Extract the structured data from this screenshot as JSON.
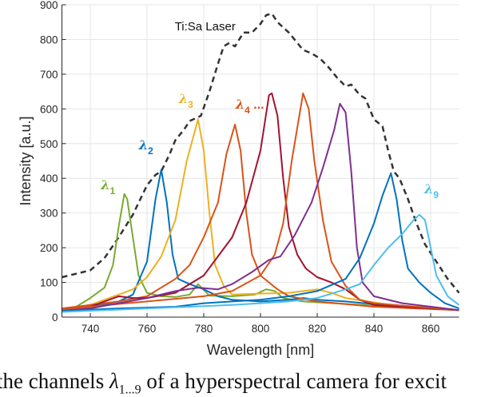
{
  "chart_data": {
    "type": "line",
    "xlabel": "Wavelength [nm]",
    "ylabel": "Intensity [a.u.]",
    "xlim": [
      730,
      870
    ],
    "ylim": [
      0,
      900
    ],
    "xticks": [
      740,
      760,
      780,
      800,
      820,
      840,
      860
    ],
    "yticks": [
      0,
      100,
      200,
      300,
      400,
      500,
      600,
      700,
      800,
      900
    ],
    "grid": true,
    "series": [
      {
        "name": "Ti:Sa Laser",
        "color": "#333333",
        "dashed": true,
        "label_at": [
          780.5,
          840
        ],
        "points": [
          [
            730,
            115
          ],
          [
            740,
            135
          ],
          [
            745,
            170
          ],
          [
            750,
            230
          ],
          [
            755,
            295
          ],
          [
            760,
            380
          ],
          [
            763,
            410
          ],
          [
            765,
            420
          ],
          [
            768,
            470
          ],
          [
            770,
            510
          ],
          [
            773,
            540
          ],
          [
            775,
            565
          ],
          [
            779,
            580
          ],
          [
            782,
            650
          ],
          [
            785,
            730
          ],
          [
            787,
            780
          ],
          [
            789,
            790
          ],
          [
            791,
            780
          ],
          [
            794,
            820
          ],
          [
            797,
            820
          ],
          [
            800,
            845
          ],
          [
            802,
            870
          ],
          [
            804,
            875
          ],
          [
            806,
            850
          ],
          [
            810,
            820
          ],
          [
            812,
            800
          ],
          [
            815,
            770
          ],
          [
            818,
            760
          ],
          [
            821,
            745
          ],
          [
            824,
            720
          ],
          [
            827,
            690
          ],
          [
            830,
            665
          ],
          [
            832,
            670
          ],
          [
            835,
            640
          ],
          [
            837,
            630
          ],
          [
            840,
            570
          ],
          [
            843,
            550
          ],
          [
            845,
            480
          ],
          [
            847,
            420
          ],
          [
            849,
            400
          ],
          [
            852,
            340
          ],
          [
            855,
            270
          ],
          [
            858,
            210
          ],
          [
            862,
            160
          ],
          [
            866,
            110
          ],
          [
            870,
            70
          ]
        ]
      },
      {
        "name": "λ",
        "sub": "1",
        "color": "#77AC30",
        "label_at": [
          746,
          377
        ],
        "points": [
          [
            730,
            20
          ],
          [
            735,
            30
          ],
          [
            740,
            55
          ],
          [
            745,
            85
          ],
          [
            748,
            150
          ],
          [
            750,
            260
          ],
          [
            752,
            355
          ],
          [
            753,
            340
          ],
          [
            755,
            230
          ],
          [
            757,
            120
          ],
          [
            760,
            70
          ],
          [
            765,
            60
          ],
          [
            770,
            58
          ],
          [
            775,
            65
          ],
          [
            778,
            95
          ],
          [
            782,
            62
          ],
          [
            790,
            60
          ],
          [
            798,
            65
          ],
          [
            802,
            80
          ],
          [
            805,
            75
          ],
          [
            808,
            55
          ],
          [
            815,
            45
          ],
          [
            830,
            38
          ],
          [
            850,
            28
          ],
          [
            870,
            20
          ]
        ]
      },
      {
        "name": "λ",
        "sub": "2",
        "color": "#0072BD",
        "label_at": [
          759.4,
          493
        ],
        "points": [
          [
            730,
            18
          ],
          [
            740,
            30
          ],
          [
            750,
            45
          ],
          [
            755,
            65
          ],
          [
            760,
            160
          ],
          [
            763,
            340
          ],
          [
            765,
            425
          ],
          [
            767,
            330
          ],
          [
            769,
            180
          ],
          [
            771,
            110
          ],
          [
            775,
            95
          ],
          [
            780,
            80
          ],
          [
            785,
            60
          ],
          [
            790,
            50
          ],
          [
            800,
            45
          ],
          [
            810,
            50
          ],
          [
            815,
            55
          ],
          [
            820,
            50
          ],
          [
            830,
            45
          ],
          [
            850,
            30
          ],
          [
            870,
            20
          ]
        ]
      },
      {
        "name": "λ",
        "sub": "3",
        "color": "#EDB120",
        "label_at": [
          773.5,
          626
        ],
        "points": [
          [
            730,
            22
          ],
          [
            740,
            35
          ],
          [
            750,
            65
          ],
          [
            755,
            80
          ],
          [
            760,
            115
          ],
          [
            765,
            175
          ],
          [
            770,
            280
          ],
          [
            774,
            450
          ],
          [
            778,
            570
          ],
          [
            780,
            480
          ],
          [
            782,
            300
          ],
          [
            784,
            150
          ],
          [
            787,
            90
          ],
          [
            790,
            65
          ],
          [
            800,
            68
          ],
          [
            810,
            70
          ],
          [
            820,
            80
          ],
          [
            825,
            70
          ],
          [
            830,
            55
          ],
          [
            850,
            30
          ],
          [
            870,
            20
          ]
        ]
      },
      {
        "name": "λ",
        "sub": "4",
        "suffix": " ...",
        "color": "#D95319",
        "label_at": [
          793.5,
          610
        ],
        "points": [
          [
            730,
            25
          ],
          [
            740,
            35
          ],
          [
            750,
            45
          ],
          [
            760,
            60
          ],
          [
            770,
            110
          ],
          [
            775,
            150
          ],
          [
            780,
            230
          ],
          [
            785,
            330
          ],
          [
            788,
            470
          ],
          [
            791,
            555
          ],
          [
            793,
            480
          ],
          [
            795,
            300
          ],
          [
            797,
            180
          ],
          [
            800,
            120
          ],
          [
            803,
            100
          ],
          [
            806,
            80
          ],
          [
            810,
            60
          ],
          [
            820,
            45
          ],
          [
            840,
            30
          ],
          [
            870,
            20
          ]
        ]
      },
      {
        "color": "#A2142F",
        "points": [
          [
            730,
            22
          ],
          [
            740,
            30
          ],
          [
            750,
            60
          ],
          [
            755,
            55
          ],
          [
            760,
            55
          ],
          [
            770,
            70
          ],
          [
            780,
            120
          ],
          [
            790,
            230
          ],
          [
            795,
            330
          ],
          [
            800,
            480
          ],
          [
            803,
            640
          ],
          [
            804,
            645
          ],
          [
            806,
            580
          ],
          [
            808,
            400
          ],
          [
            810,
            260
          ],
          [
            813,
            180
          ],
          [
            816,
            140
          ],
          [
            820,
            115
          ],
          [
            825,
            100
          ],
          [
            830,
            80
          ],
          [
            835,
            50
          ],
          [
            840,
            35
          ],
          [
            870,
            20
          ]
        ]
      },
      {
        "color": "#D95319",
        "points": [
          [
            730,
            22
          ],
          [
            740,
            30
          ],
          [
            750,
            38
          ],
          [
            760,
            45
          ],
          [
            780,
            60
          ],
          [
            790,
            75
          ],
          [
            800,
            120
          ],
          [
            805,
            180
          ],
          [
            808,
            270
          ],
          [
            811,
            450
          ],
          [
            815,
            645
          ],
          [
            817,
            600
          ],
          [
            819,
            450
          ],
          [
            822,
            280
          ],
          [
            825,
            160
          ],
          [
            830,
            90
          ],
          [
            835,
            50
          ],
          [
            840,
            40
          ],
          [
            870,
            20
          ]
        ]
      },
      {
        "color": "#7E2F8E",
        "points": [
          [
            730,
            18
          ],
          [
            740,
            25
          ],
          [
            750,
            40
          ],
          [
            760,
            55
          ],
          [
            770,
            75
          ],
          [
            778,
            85
          ],
          [
            785,
            80
          ],
          [
            790,
            95
          ],
          [
            797,
            130
          ],
          [
            803,
            165
          ],
          [
            807,
            175
          ],
          [
            812,
            235
          ],
          [
            818,
            330
          ],
          [
            822,
            430
          ],
          [
            826,
            540
          ],
          [
            828,
            615
          ],
          [
            830,
            590
          ],
          [
            832,
            420
          ],
          [
            834,
            200
          ],
          [
            836,
            100
          ],
          [
            840,
            60
          ],
          [
            850,
            40
          ],
          [
            870,
            20
          ]
        ]
      },
      {
        "color": "#0072BD",
        "points": [
          [
            730,
            18
          ],
          [
            750,
            25
          ],
          [
            770,
            30
          ],
          [
            780,
            40
          ],
          [
            790,
            45
          ],
          [
            800,
            50
          ],
          [
            810,
            60
          ],
          [
            820,
            75
          ],
          [
            830,
            110
          ],
          [
            835,
            170
          ],
          [
            840,
            270
          ],
          [
            843,
            350
          ],
          [
            846,
            415
          ],
          [
            848,
            340
          ],
          [
            850,
            220
          ],
          [
            852,
            140
          ],
          [
            856,
            100
          ],
          [
            860,
            70
          ],
          [
            865,
            40
          ],
          [
            870,
            25
          ]
        ]
      },
      {
        "name": "λ",
        "sub": "9",
        "color": "#4DBEEE",
        "label_at": [
          860,
          366
        ],
        "points": [
          [
            730,
            15
          ],
          [
            760,
            25
          ],
          [
            790,
            35
          ],
          [
            810,
            45
          ],
          [
            820,
            55
          ],
          [
            830,
            80
          ],
          [
            835,
            95
          ],
          [
            840,
            150
          ],
          [
            845,
            200
          ],
          [
            850,
            240
          ],
          [
            854,
            280
          ],
          [
            856,
            295
          ],
          [
            858,
            280
          ],
          [
            860,
            200
          ],
          [
            862,
            120
          ],
          [
            866,
            60
          ],
          [
            870,
            35
          ]
        ]
      }
    ]
  },
  "caption": {
    "before": "the channels ",
    "lambda": "λ",
    "sub": "1...9",
    "after": " of a hyperspectral camera for excit"
  }
}
